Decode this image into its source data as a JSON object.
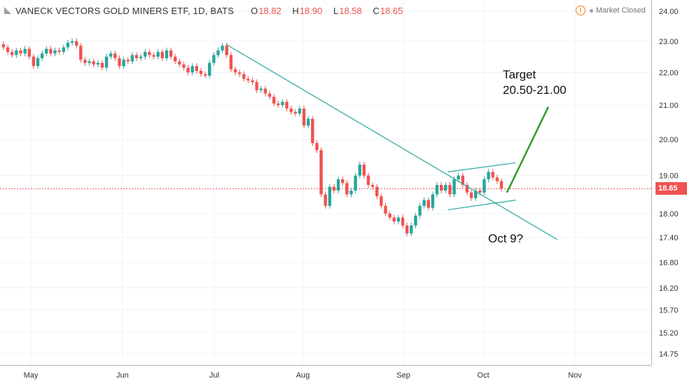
{
  "header": {
    "title": "VANECK VECTORS GOLD MINERS ETF, 1D, BATS",
    "ohlc": [
      {
        "key": "O",
        "value": "18.82"
      },
      {
        "key": "H",
        "value": "18.90"
      },
      {
        "key": "L",
        "value": "18.58"
      },
      {
        "key": "C",
        "value": "18.65"
      }
    ]
  },
  "status": {
    "text": "Market Closed",
    "warn_icon": "!"
  },
  "last_price_label": "18.65",
  "annotations": {
    "target_line1": "Target",
    "target_line2": "20.50-21.00",
    "date_note": "Oct 9?"
  },
  "colors": {
    "up": "#26a69a",
    "down": "#ef5350",
    "trendline": "#26a69a",
    "target_arrow": "#2e9c2e",
    "last_price_line": "#ef5350"
  },
  "chart_data": {
    "type": "candlestick",
    "title": "VANECK VECTORS GOLD MINERS ETF, 1D, BATS",
    "scale": "log",
    "ylim": [
      14.6,
      24.0
    ],
    "y_ticks": [
      "24.00",
      "23.00",
      "22.00",
      "21.00",
      "20.00",
      "19.00",
      "18.00",
      "17.40",
      "16.80",
      "16.20",
      "15.70",
      "15.20",
      "14.75"
    ],
    "x_ticks": [
      {
        "label": "May",
        "date": "2018-05-01"
      },
      {
        "label": "Jun",
        "date": "2018-06-01"
      },
      {
        "label": "Jul",
        "date": "2018-07-02"
      },
      {
        "label": "Aug",
        "date": "2018-08-01"
      },
      {
        "label": "Sep",
        "date": "2018-09-04"
      },
      {
        "label": "Oct",
        "date": "2018-10-01"
      },
      {
        "label": "Nov",
        "date": "2018-11-01"
      }
    ],
    "last_price": 18.65,
    "candles_close": [
      22.8,
      22.65,
      22.55,
      22.7,
      22.6,
      22.75,
      22.5,
      22.2,
      22.45,
      22.6,
      22.75,
      22.6,
      22.7,
      22.65,
      22.8,
      22.95,
      23.0,
      22.85,
      22.4,
      22.3,
      22.35,
      22.25,
      22.3,
      22.15,
      22.5,
      22.6,
      22.45,
      22.2,
      22.4,
      22.35,
      22.55,
      22.45,
      22.5,
      22.65,
      22.55,
      22.5,
      22.65,
      22.45,
      22.7,
      22.5,
      22.35,
      22.25,
      22.15,
      22.0,
      22.2,
      22.05,
      21.95,
      21.9,
      22.3,
      22.55,
      22.7,
      22.85,
      22.55,
      22.1,
      22.0,
      21.95,
      21.8,
      21.75,
      21.7,
      21.45,
      21.5,
      21.35,
      21.25,
      21.05,
      21.0,
      21.1,
      20.9,
      20.8,
      20.75,
      20.9,
      20.4,
      20.6,
      19.9,
      19.7,
      18.5,
      18.2,
      18.7,
      18.6,
      18.9,
      18.8,
      18.5,
      18.6,
      19.0,
      19.3,
      19.0,
      18.75,
      18.7,
      18.45,
      18.2,
      18.0,
      17.9,
      17.8,
      17.9,
      17.7,
      17.5,
      17.7,
      17.95,
      18.2,
      18.35,
      18.15,
      18.5,
      18.75,
      18.6,
      18.75,
      18.5,
      18.9,
      19.0,
      18.75,
      18.55,
      18.4,
      18.6,
      18.55,
      18.9,
      19.1,
      18.95,
      18.85,
      18.65
    ],
    "trendlines": [
      {
        "name": "downtrend",
        "points": [
          [
            "2018-07-06",
            22.9
          ],
          [
            "2018-10-26",
            17.35
          ]
        ]
      },
      {
        "name": "flag-top",
        "points": [
          [
            "2018-09-19",
            19.1
          ],
          [
            "2018-10-12",
            19.35
          ]
        ]
      },
      {
        "name": "flag-bottom",
        "points": [
          [
            "2018-09-19",
            18.1
          ],
          [
            "2018-10-12",
            18.35
          ]
        ]
      },
      {
        "name": "target-arrow",
        "points": [
          [
            "2018-10-09",
            18.55
          ],
          [
            "2018-10-23",
            20.95
          ]
        ]
      }
    ]
  }
}
